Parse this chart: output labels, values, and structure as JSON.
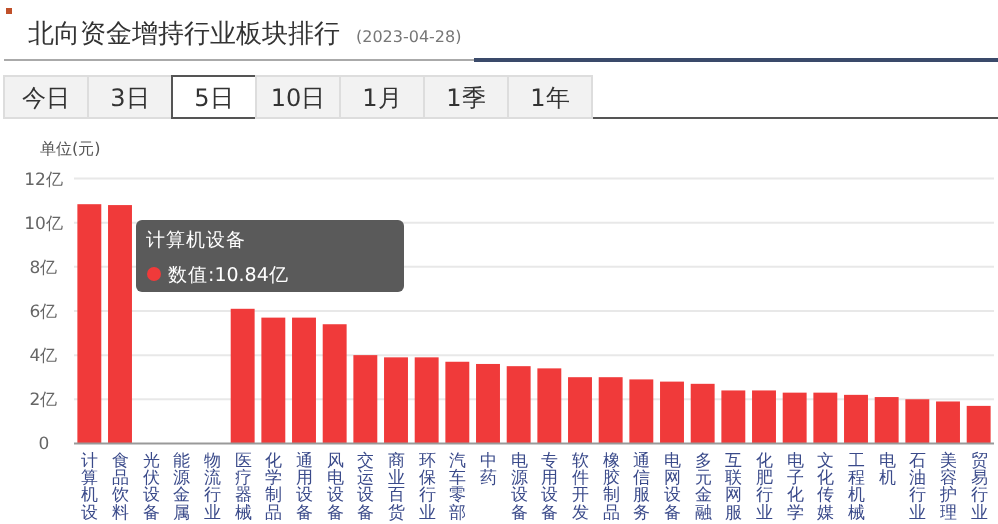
{
  "chart_data": {
    "type": "bar",
    "title": "北向资金增持行业板块排行",
    "subtitle": "(2023-04-28)",
    "ylabel": "单位(元)",
    "categories": [
      "计算机设",
      "食品饮料",
      "光伏设备",
      "能源金属",
      "物流行业",
      "医疗器械",
      "化学制品",
      "通用设备",
      "风电设备",
      "交运设备",
      "商业百货",
      "环保行业",
      "汽车零部",
      "中药",
      "电源设备",
      "专用设备",
      "软件开发",
      "橡胶制品",
      "通信服务",
      "电网设备",
      "多元金融",
      "互联网服",
      "化肥行业",
      "电子化学",
      "文化传媒",
      "工程机械",
      "电机",
      "石油行业",
      "美容护理",
      "贸易行业"
    ],
    "values": [
      10.84,
      10.8,
      null,
      null,
      null,
      6.1,
      5.7,
      5.7,
      5.4,
      4.0,
      3.9,
      3.9,
      3.7,
      3.6,
      3.5,
      3.4,
      3.0,
      3.0,
      2.9,
      2.8,
      2.7,
      2.4,
      2.4,
      2.3,
      2.3,
      2.2,
      2.1,
      2.0,
      1.9,
      1.7
    ],
    "color": "#f03a3a",
    "ylim": [
      0,
      12
    ],
    "yticks": [
      0,
      {
        "value": 2,
        "label": "2亿"
      },
      {
        "value": 4,
        "label": "4亿"
      },
      {
        "value": 6,
        "label": "6亿"
      },
      {
        "value": 8,
        "label": "8亿"
      },
      {
        "value": 10,
        "label": "10亿"
      },
      {
        "value": 12,
        "label": "12亿"
      }
    ],
    "grid": "y",
    "annotations": [
      "今日",
      "3日",
      "5日",
      "10日",
      "1月",
      "1季",
      "1年",
      "计算机设备",
      "数值:10.84亿"
    ]
  }
}
